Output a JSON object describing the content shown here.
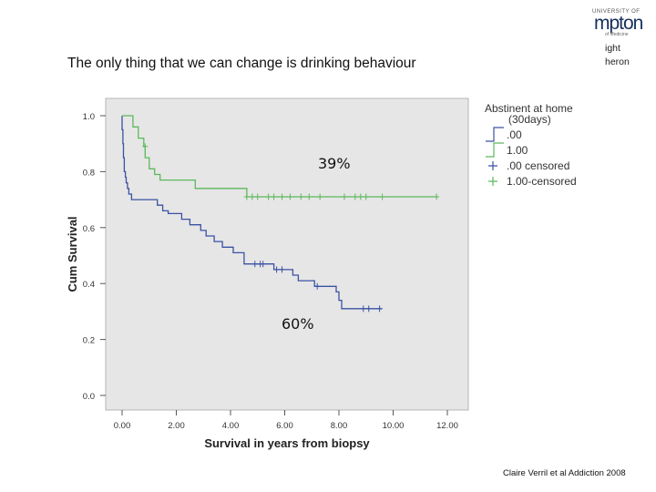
{
  "slide": {
    "title": "The only thing that we can change is drinking behaviour",
    "citation": "Claire Verril et al Addiction 2008",
    "corner_text": [
      "ight",
      "heron"
    ],
    "logo_text": [
      "UNIVERSITY OF",
      "mpton",
      "of Medicine"
    ]
  },
  "colors": {
    "abstinent": "#4a5fa8",
    "not_abstinent": "#2f4fa0",
    "green": "#5cb85c",
    "plot_bg": "#e6e6e6"
  },
  "chart_data": {
    "type": "line",
    "title": "",
    "xlabel": "Survival in years from biopsy",
    "ylabel": "Cum Survival",
    "xlim": [
      0,
      12
    ],
    "ylim": [
      0,
      1
    ],
    "xticks": [
      0,
      2,
      4,
      6,
      8,
      10,
      12
    ],
    "xtick_labels": [
      "0.00",
      "2.00",
      "4.00",
      "6.00",
      "8.00",
      "10.00",
      "12.00"
    ],
    "yticks": [
      0,
      0.2,
      0.4,
      0.6,
      0.8,
      1.0
    ],
    "ytick_labels": [
      "0.0",
      "0.2",
      "0.4",
      "0.6",
      "0.8",
      "1.0"
    ],
    "legend": {
      "title": "Abstinent at home (30days)",
      "entries": [
        ".00",
        "1.00",
        ".00 censored",
        "1.00-censored"
      ],
      "placement": "right"
    },
    "annotations": [
      "39%",
      "60%"
    ],
    "series": [
      {
        "name": ".00",
        "color": "#3b52a3",
        "steps": [
          [
            0,
            1.0
          ],
          [
            0,
            0.95
          ],
          [
            0.03,
            0.9
          ],
          [
            0.05,
            0.85
          ],
          [
            0.08,
            0.8
          ],
          [
            0.12,
            0.78
          ],
          [
            0.15,
            0.76
          ],
          [
            0.2,
            0.74
          ],
          [
            0.25,
            0.72
          ],
          [
            0.35,
            0.7
          ],
          [
            1.3,
            0.68
          ],
          [
            1.5,
            0.66
          ],
          [
            1.7,
            0.65
          ],
          [
            2.2,
            0.63
          ],
          [
            2.5,
            0.61
          ],
          [
            2.9,
            0.59
          ],
          [
            3.1,
            0.57
          ],
          [
            3.4,
            0.55
          ],
          [
            3.7,
            0.53
          ],
          [
            4.1,
            0.51
          ],
          [
            4.5,
            0.47
          ],
          [
            5.6,
            0.45
          ],
          [
            6.3,
            0.43
          ],
          [
            6.5,
            0.41
          ],
          [
            7.1,
            0.39
          ],
          [
            7.9,
            0.37
          ],
          [
            8.0,
            0.34
          ],
          [
            8.1,
            0.31
          ],
          [
            9.6,
            0.31
          ]
        ],
        "censored": [
          [
            4.9,
            0.47
          ],
          [
            5.1,
            0.47
          ],
          [
            5.2,
            0.47
          ],
          [
            5.7,
            0.45
          ],
          [
            5.9,
            0.45
          ],
          [
            7.2,
            0.39
          ],
          [
            8.9,
            0.31
          ],
          [
            9.1,
            0.31
          ],
          [
            9.5,
            0.31
          ]
        ]
      },
      {
        "name": "1.00",
        "color": "#5cb85c",
        "steps": [
          [
            0,
            1.0
          ],
          [
            0.2,
            1.0
          ],
          [
            0.4,
            0.96
          ],
          [
            0.6,
            0.92
          ],
          [
            0.8,
            0.89
          ],
          [
            0.85,
            0.85
          ],
          [
            1.0,
            0.81
          ],
          [
            1.2,
            0.79
          ],
          [
            1.4,
            0.77
          ],
          [
            2.7,
            0.74
          ],
          [
            4.6,
            0.71
          ],
          [
            11.6,
            0.71
          ]
        ],
        "censored": [
          [
            0.85,
            0.89
          ],
          [
            4.6,
            0.71
          ],
          [
            4.8,
            0.71
          ],
          [
            5.0,
            0.71
          ],
          [
            5.4,
            0.71
          ],
          [
            5.6,
            0.71
          ],
          [
            5.9,
            0.71
          ],
          [
            6.2,
            0.71
          ],
          [
            6.6,
            0.71
          ],
          [
            6.9,
            0.71
          ],
          [
            7.3,
            0.71
          ],
          [
            8.2,
            0.71
          ],
          [
            8.6,
            0.71
          ],
          [
            8.8,
            0.71
          ],
          [
            9.0,
            0.71
          ],
          [
            9.6,
            0.71
          ],
          [
            11.6,
            0.71
          ]
        ]
      }
    ]
  }
}
